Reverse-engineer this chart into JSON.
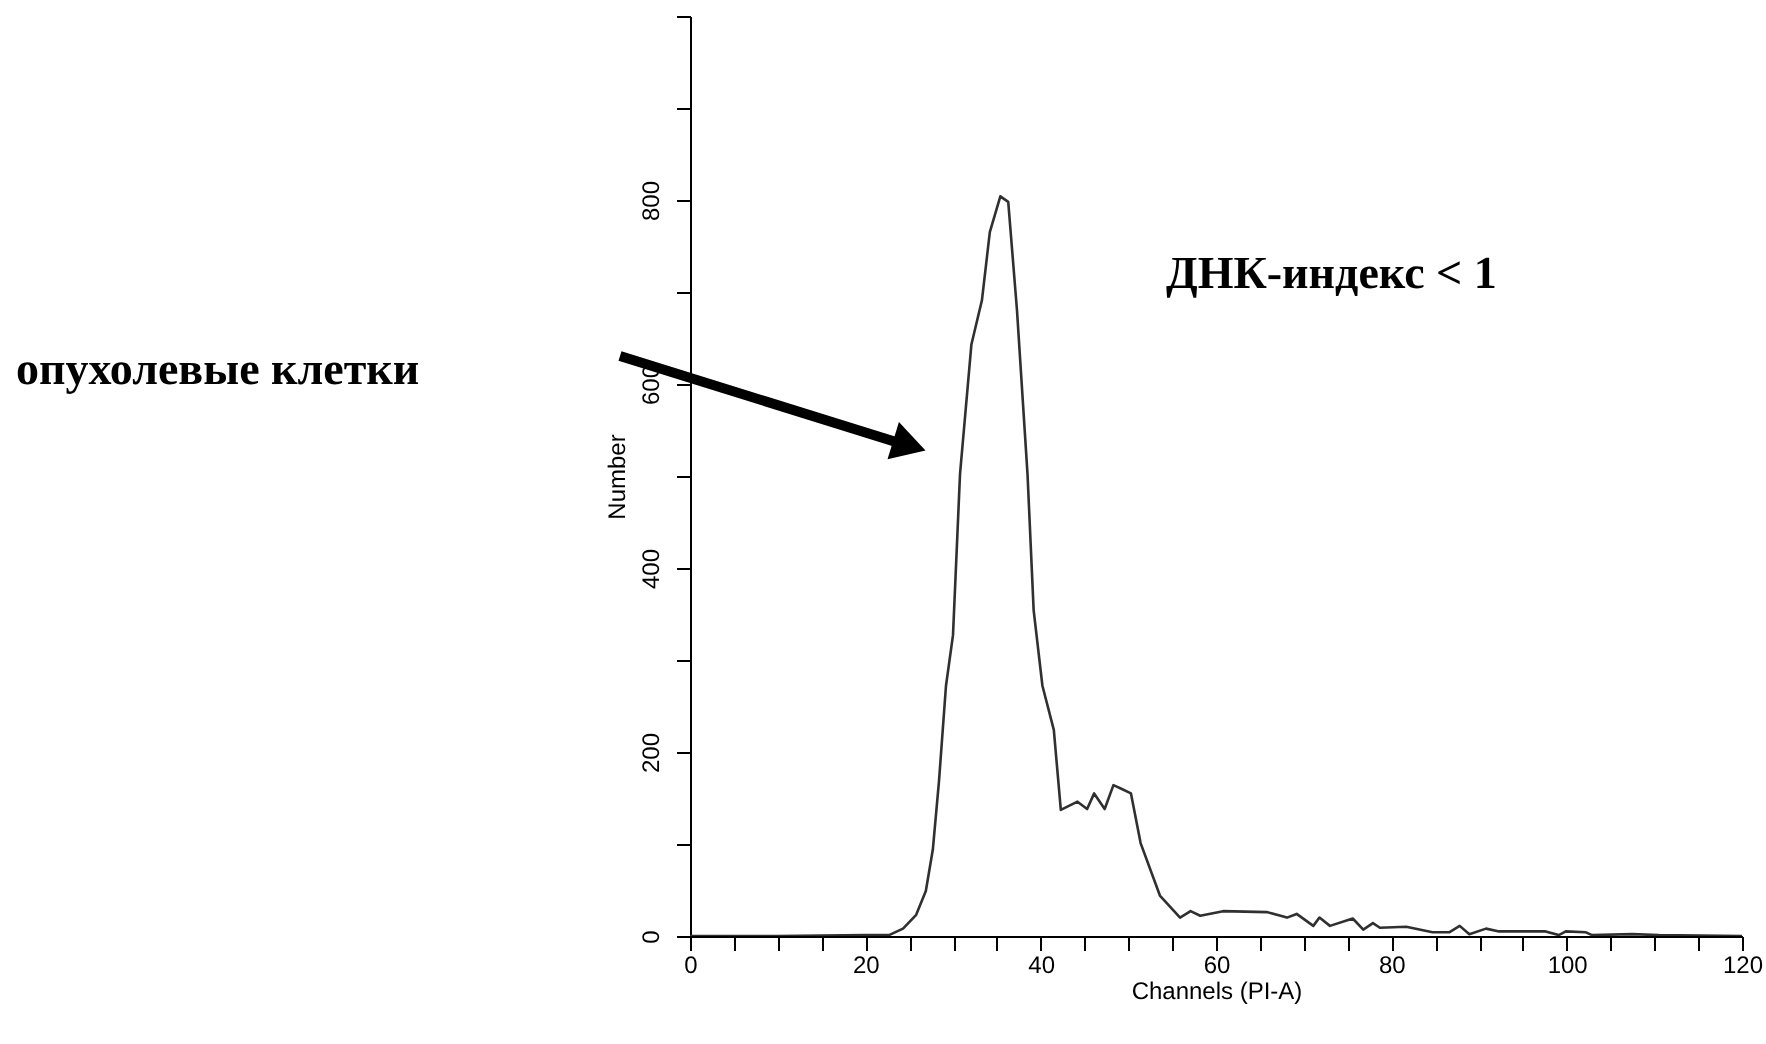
{
  "chart_data": {
    "type": "line",
    "xlabel": "Channels (PI-A)",
    "ylabel": "Number",
    "annotations": [
      "ДНК-индекс < 1",
      "опухолевые клетки"
    ],
    "x": [
      0,
      10,
      20,
      22.7,
      24.3,
      25.8,
      26.9,
      27.7,
      28.4,
      29.2,
      30.0,
      30.8,
      32.1,
      33.3,
      34.2,
      35.4,
      36.3,
      37.3,
      38.5,
      39.2,
      40.2,
      41.5,
      42.3,
      44.2,
      45.3,
      46.1,
      47.3,
      48.3,
      49.2,
      50.3,
      51.4,
      53.6,
      55.9,
      57.1,
      58.2,
      60.8,
      65.8,
      68.1,
      69.2,
      71.1,
      71.8,
      73.0,
      75.6,
      76.8,
      77.9,
      78.7,
      81.7,
      84.7,
      86.6,
      87.8,
      88.9,
      90.8,
      92.3,
      97.6,
      99.1,
      99.9,
      102.2,
      102.9,
      107.5,
      110.5,
      120
    ],
    "series": [
      {
        "color": "#303030",
        "values": [
          0,
          0,
          1,
          1,
          8,
          23,
          49,
          94,
          168,
          272,
          327,
          502,
          643,
          691,
          765,
          804,
          798,
          680,
          502,
          354,
          272,
          224,
          137,
          146,
          138,
          155,
          138,
          164,
          160,
          155,
          101,
          44,
          20,
          27,
          22,
          27,
          26,
          20,
          24,
          11,
          20,
          11,
          19,
          7,
          14,
          9,
          10,
          4,
          4,
          11,
          2,
          8,
          5,
          5,
          1,
          5,
          4,
          1,
          2,
          1,
          0
        ]
      }
    ],
    "xlim": [
      0,
      120
    ],
    "xticks": [
      0,
      {
        "value": 5,
        "label": null
      },
      {
        "value": 10,
        "label": null
      },
      {
        "value": 15,
        "label": null
      },
      20,
      {
        "value": 25,
        "label": null
      },
      {
        "value": 30,
        "label": null
      },
      {
        "value": 35,
        "label": null
      },
      40,
      {
        "value": 45,
        "label": null
      },
      {
        "value": 50,
        "label": null
      },
      {
        "value": 55,
        "label": null
      },
      60,
      {
        "value": 65,
        "label": null
      },
      {
        "value": 70,
        "label": null
      },
      {
        "value": 75,
        "label": null
      },
      80,
      {
        "value": 85,
        "label": null
      },
      {
        "value": 90,
        "label": null
      },
      {
        "value": 95,
        "label": null
      },
      100,
      {
        "value": 105,
        "label": null
      },
      {
        "value": 110,
        "label": null
      },
      {
        "value": 115,
        "label": null
      },
      120
    ],
    "ylim": [
      0,
      1000
    ],
    "yticks": [
      0,
      {
        "value": 100,
        "label": null
      },
      200,
      {
        "value": 300,
        "label": null
      },
      400,
      {
        "value": 500,
        "label": null
      },
      600,
      {
        "value": 700,
        "label": null
      },
      800,
      {
        "value": 900,
        "label": null
      },
      {
        "value": 1000,
        "label": null
      }
    ],
    "grid": false,
    "marker": "none",
    "line_style": "solid"
  }
}
